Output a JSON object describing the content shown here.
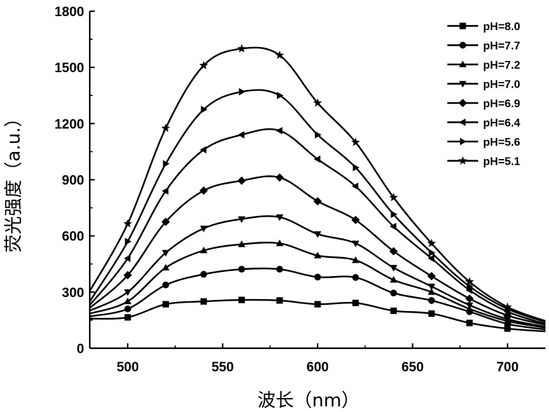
{
  "chart_data": {
    "type": "line",
    "title": "",
    "xlabel": "波长（nm）",
    "ylabel": "荧光强度（a.u.）",
    "xlim": [
      480,
      720
    ],
    "ylim": [
      0,
      1800
    ],
    "xticks": [
      500,
      550,
      600,
      650,
      700
    ],
    "yticks": [
      0,
      300,
      600,
      900,
      1200,
      1500,
      1800
    ],
    "grid": false,
    "legend": "top-right",
    "marker_x": [
      480,
      500,
      520,
      540,
      560,
      580,
      600,
      620,
      640,
      660,
      680,
      700,
      720
    ],
    "series": [
      {
        "name": "pH=8.0",
        "marker": "square",
        "values": [
          158,
          165,
          235,
          250,
          258,
          255,
          235,
          242,
          200,
          185,
          135,
          105,
          90
        ]
      },
      {
        "name": "pH=7.7",
        "marker": "circle",
        "values": [
          170,
          210,
          338,
          395,
          422,
          422,
          380,
          378,
          295,
          255,
          195,
          130,
          100
        ]
      },
      {
        "name": "pH=7.2",
        "marker": "triangle-up",
        "values": [
          185,
          250,
          430,
          522,
          555,
          560,
          495,
          470,
          365,
          300,
          210,
          145,
          110
        ]
      },
      {
        "name": "pH=7.0",
        "marker": "triangle-down",
        "values": [
          200,
          300,
          510,
          640,
          690,
          700,
          610,
          560,
          430,
          330,
          230,
          155,
          115
        ]
      },
      {
        "name": "pH=6.9",
        "marker": "diamond",
        "values": [
          215,
          390,
          675,
          842,
          895,
          912,
          785,
          685,
          518,
          385,
          265,
          175,
          125
        ]
      },
      {
        "name": "pH=6.4",
        "marker": "triangle-left",
        "values": [
          230,
          480,
          840,
          1060,
          1140,
          1162,
          1010,
          865,
          650,
          480,
          310,
          195,
          130
        ]
      },
      {
        "name": "pH=5.6",
        "marker": "triangle-right",
        "values": [
          250,
          570,
          985,
          1275,
          1370,
          1350,
          1140,
          965,
          715,
          510,
          330,
          210,
          140
        ]
      },
      {
        "name": "pH=5.1",
        "marker": "star",
        "values": [
          305,
          665,
          1175,
          1510,
          1600,
          1565,
          1310,
          1100,
          805,
          560,
          355,
          220,
          145
        ]
      }
    ]
  }
}
